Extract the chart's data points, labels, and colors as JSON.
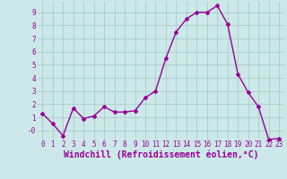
{
  "x": [
    0,
    1,
    2,
    3,
    4,
    5,
    6,
    7,
    8,
    9,
    10,
    11,
    12,
    13,
    14,
    15,
    16,
    17,
    18,
    19,
    20,
    21,
    22,
    23
  ],
  "y": [
    1.3,
    0.5,
    -0.4,
    1.7,
    0.9,
    1.1,
    1.8,
    1.4,
    1.4,
    1.5,
    2.5,
    3.0,
    5.5,
    7.5,
    8.5,
    9.0,
    9.0,
    9.5,
    8.1,
    4.3,
    2.9,
    1.8,
    -0.7,
    -0.6
  ],
  "line_color": "#990099",
  "marker": "D",
  "markersize": 2,
  "linewidth": 1.0,
  "xlabel": "Windchill (Refroidissement éolien,°C)",
  "xlabel_fontsize": 7,
  "xtick_labels": [
    "0",
    "1",
    "2",
    "3",
    "4",
    "5",
    "6",
    "7",
    "8",
    "9",
    "10",
    "11",
    "12",
    "13",
    "14",
    "15",
    "16",
    "17",
    "18",
    "19",
    "20",
    "21",
    "22",
    "23"
  ],
  "ytick_positions": [
    0,
    1,
    2,
    3,
    4,
    5,
    6,
    7,
    8,
    9
  ],
  "ytick_labels": [
    "-0",
    "1",
    "2",
    "3",
    "4",
    "5",
    "6",
    "7",
    "8",
    "9"
  ],
  "ylim": [
    -0.7,
    9.8
  ],
  "xlim": [
    -0.5,
    23.5
  ],
  "bg_color": "#cce8e8",
  "grid_color": "#aacccc",
  "line_purple": "#990099",
  "tick_fontsize": 5.5,
  "xlabel_color": "#990099"
}
